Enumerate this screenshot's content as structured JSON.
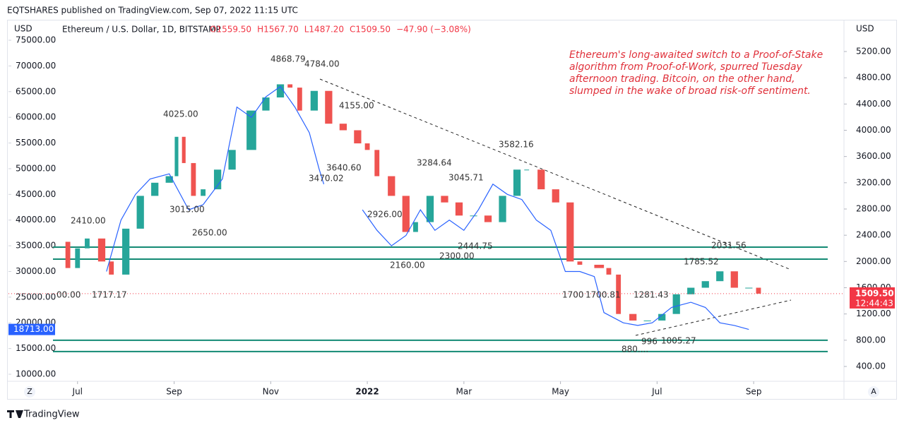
{
  "header": {
    "published": "EQTSHARES published on TradingView.com, Sep 07, 2022 11:15 UTC"
  },
  "footer": {
    "brand": "TradingView"
  },
  "chart_data": {
    "type": "candlestick",
    "symbol": "Ethereum / U.S. Dollar, 1D, BITSTAMP",
    "ohlc": [
      "O1559.50",
      "H1567.70",
      "L1487.20",
      "C1509.50",
      "−47.90 (−3.08%)"
    ],
    "y_label": "USD",
    "y2_label": "USD",
    "note": [
      "Ethereum's long-awaited switch to a Proof-of-Stake",
      "algorithm from Proof-of-Work, spurred Tuesday",
      "afternoon trading. Bitcoin, on the other hand,",
      "slumped in the wake of broad risk-off sentiment."
    ],
    "xlim": [
      5.57,
      22.87
    ],
    "xticks": [
      {
        "value": 7,
        "label": "Jul"
      },
      {
        "value": 9,
        "label": "Sep"
      },
      {
        "value": 11,
        "label": "Nov"
      },
      {
        "value": 13,
        "label": "2022"
      },
      {
        "value": 15,
        "label": "Mar"
      },
      {
        "value": 17,
        "label": "May"
      },
      {
        "value": 19,
        "label": "Jul"
      },
      {
        "value": 21,
        "label": "Sep"
      }
    ],
    "ylim": [
      8626,
      78986
    ],
    "yticks": [
      {
        "value": 10000,
        "label": "10000.00"
      },
      {
        "value": 15000,
        "label": "15000.00"
      },
      {
        "value": 20000,
        "label": "20000.00"
      },
      {
        "value": 25000,
        "label": "25000.00"
      },
      {
        "value": 30000,
        "label": "30000.00"
      },
      {
        "value": 35000,
        "label": "35000.00"
      },
      {
        "value": 40000,
        "label": "40000.00"
      },
      {
        "value": 45000,
        "label": "45000.00"
      },
      {
        "value": 50000,
        "label": "50000.00"
      },
      {
        "value": 55000,
        "label": "55000.00"
      },
      {
        "value": 60000,
        "label": "60000.00"
      },
      {
        "value": 65000,
        "label": "65000.00"
      },
      {
        "value": 70000,
        "label": "70000.00"
      },
      {
        "value": 75000,
        "label": "75000.00"
      }
    ],
    "y2lim": [
      174,
      5684
    ],
    "y2ticks": [
      {
        "value": 400,
        "label": "400.00"
      },
      {
        "value": 800,
        "label": "800.00"
      },
      {
        "value": 1200,
        "label": "1200.00"
      },
      {
        "value": 1600,
        "label": "1600.00"
      },
      {
        "value": 2000,
        "label": "2000.00"
      },
      {
        "value": 2400,
        "label": "2400.00"
      },
      {
        "value": 2800,
        "label": "2800.00"
      },
      {
        "value": 3200,
        "label": "3200.00"
      },
      {
        "value": 3600,
        "label": "3600.00"
      },
      {
        "value": 4000,
        "label": "4000.00"
      },
      {
        "value": 4400,
        "label": "4400.00"
      },
      {
        "value": 4800,
        "label": "4800.00"
      },
      {
        "value": 5200,
        "label": "5200.00"
      }
    ],
    "series": [
      {
        "axis": "y2",
        "up_color": "#26a69a",
        "down_color": "#ef5350",
        "x": [
          6.6,
          6.8,
          7.0,
          7.2,
          7.5,
          7.7,
          8.0,
          8.3,
          8.6,
          8.9,
          9.05,
          9.2,
          9.4,
          9.6,
          9.9,
          10.2,
          10.6,
          10.9,
          11.2,
          11.4,
          11.6,
          11.9,
          12.2,
          12.5,
          12.8,
          13.0,
          13.2,
          13.5,
          13.8,
          14.0,
          14.3,
          14.6,
          14.9,
          15.2,
          15.5,
          15.8,
          16.1,
          16.3,
          16.6,
          16.9,
          17.2,
          17.4,
          17.8,
          18.0,
          18.2,
          18.5,
          18.8,
          19.1,
          19.4,
          19.7,
          20.0,
          20.3,
          20.6,
          20.9,
          21.1
        ],
        "values": [
          2300,
          1900,
          2200,
          2350,
          2000,
          1800,
          2500,
          3000,
          3200,
          3300,
          3900,
          3500,
          3000,
          3100,
          3400,
          3700,
          4300,
          4500,
          4700,
          4650,
          4300,
          4600,
          4100,
          4000,
          3800,
          3700,
          3300,
          3000,
          2450,
          2600,
          3000,
          2900,
          2700,
          2700,
          2600,
          3000,
          3400,
          3400,
          3100,
          2900,
          2000,
          1950,
          1900,
          1800,
          1200,
          1100,
          1100,
          1200,
          1500,
          1600,
          1700,
          1850,
          1600,
          1600,
          1509.5
        ]
      },
      {
        "axis": "y",
        "color": "#2962ff",
        "x": [
          7.6,
          7.9,
          8.2,
          8.5,
          8.9,
          9.3,
          9.6,
          10.0,
          10.3,
          10.6,
          10.9,
          11.2,
          11.5,
          11.8,
          12.0,
          12.1,
          12.5,
          12.9,
          13.2,
          13.5,
          13.8,
          14.1,
          14.4,
          14.7,
          15.0,
          15.3,
          15.6,
          15.9,
          16.2,
          16.5,
          16.8,
          17.1,
          17.4,
          17.7,
          17.9,
          18.3,
          18.6,
          18.9,
          19.3,
          19.7,
          20.0,
          20.3,
          20.6,
          20.9
        ],
        "values": [
          30000,
          40000,
          45000,
          48000,
          49000,
          42000,
          43000,
          48000,
          62000,
          60000,
          64000,
          66000,
          62000,
          57000,
          50000,
          47000,
          null,
          42000,
          38000,
          35000,
          37000,
          42000,
          38000,
          40000,
          38000,
          42000,
          47000,
          45000,
          44000,
          40000,
          38000,
          30000,
          30000,
          29000,
          22000,
          20000,
          19500,
          20000,
          23000,
          24000,
          23000,
          20000,
          19500,
          18713
        ]
      }
    ],
    "levels": {
      "axis": "y2",
      "color": "#138a74",
      "values": [
        2219,
        2036,
        799,
        627
      ]
    },
    "price_tag": {
      "value": 1509.5,
      "label": "1509.50",
      "countdown": "12:44:43",
      "color": "#f23645"
    },
    "left_tag": {
      "value": 18713,
      "label": "18713.00",
      "color": "#2962ff"
    },
    "annotations": [
      "4868.79",
      "4784.00",
      "4025.00",
      "4155.00",
      "3640.60",
      "3470.02",
      "3015.00",
      "2650.00",
      "2410.00",
      "3284.64",
      "3045.71",
      "2926.00",
      "2160.00",
      "2300.00",
      "2444.75",
      "3582.16",
      "1700",
      "1700.81",
      "1281.43",
      "1785.52",
      "2031.56",
      "880....",
      "996",
      "1005.27",
      "00.00",
      "1717.17"
    ]
  }
}
